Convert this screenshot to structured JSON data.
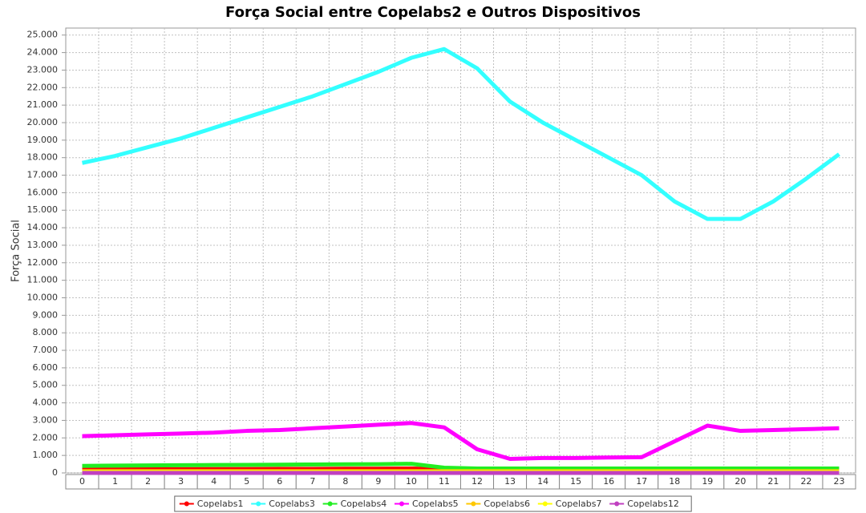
{
  "chart_data": {
    "type": "line",
    "title": "Força Social entre Copelabs2 e Outros Dispositivos",
    "y_label": "Força Social",
    "categories": [
      "0",
      "1",
      "2",
      "3",
      "4",
      "5",
      "6",
      "7",
      "8",
      "9",
      "10",
      "11",
      "12",
      "13",
      "14",
      "15",
      "16",
      "17",
      "18",
      "19",
      "20",
      "21",
      "22",
      "23"
    ],
    "series": [
      {
        "name": "Copelabs1",
        "color": "#ff0000",
        "values": [
          200,
          200,
          210,
          210,
          220,
          220,
          230,
          230,
          240,
          240,
          250,
          200,
          150,
          150,
          150,
          150,
          150,
          150,
          150,
          150,
          150,
          150,
          150,
          150
        ]
      },
      {
        "name": "Copelabs3",
        "color": "#33ffff",
        "values": [
          17700,
          18100,
          18600,
          19100,
          19700,
          20300,
          20900,
          21500,
          22200,
          22900,
          23700,
          24200,
          23100,
          21200,
          20000,
          19000,
          18000,
          17000,
          15500,
          14500,
          14500,
          15500,
          16800,
          18200
        ]
      },
      {
        "name": "Copelabs4",
        "color": "#22ee22",
        "values": [
          400,
          420,
          430,
          440,
          450,
          460,
          470,
          480,
          490,
          500,
          520,
          300,
          250,
          250,
          250,
          250,
          250,
          250,
          250,
          250,
          250,
          250,
          250,
          250
        ]
      },
      {
        "name": "Copelabs5",
        "color": "#ff00ff",
        "values": [
          2100,
          2150,
          2200,
          2250,
          2300,
          2400,
          2450,
          2550,
          2650,
          2750,
          2850,
          2600,
          1350,
          800,
          850,
          850,
          880,
          900,
          1800,
          2700,
          2400,
          2450,
          2500,
          2550
        ]
      },
      {
        "name": "Copelabs6",
        "color": "#ffc800",
        "values": [
          100,
          100,
          100,
          100,
          100,
          100,
          100,
          100,
          100,
          100,
          100,
          100,
          100,
          100,
          100,
          100,
          100,
          100,
          100,
          100,
          100,
          100,
          100,
          100
        ]
      },
      {
        "name": "Copelabs7",
        "color": "#ffff00",
        "values": [
          50,
          50,
          50,
          50,
          50,
          50,
          50,
          50,
          50,
          50,
          50,
          50,
          50,
          50,
          50,
          50,
          50,
          50,
          50,
          50,
          50,
          50,
          50,
          50
        ]
      },
      {
        "name": "Copelabs12",
        "color": "#c040c0",
        "values": [
          0,
          0,
          0,
          0,
          0,
          0,
          0,
          0,
          0,
          0,
          0,
          0,
          0,
          0,
          0,
          0,
          0,
          0,
          0,
          0,
          0,
          0,
          0,
          0
        ]
      }
    ],
    "ylim": [
      0,
      25400
    ],
    "yticks": [
      0,
      {
        "value": 1000,
        "label": "1.000"
      },
      {
        "value": 2000,
        "label": "2.000"
      },
      {
        "value": 3000,
        "label": "3.000"
      },
      {
        "value": 4000,
        "label": "4.000"
      },
      {
        "value": 5000,
        "label": "5.000"
      },
      {
        "value": 6000,
        "label": "6.000"
      },
      {
        "value": 7000,
        "label": "7.000"
      },
      {
        "value": 8000,
        "label": "8.000"
      },
      {
        "value": 9000,
        "label": "9.000"
      },
      {
        "value": 10000,
        "label": "10.000"
      },
      {
        "value": 11000,
        "label": "11.000"
      },
      {
        "value": 12000,
        "label": "12.000"
      },
      {
        "value": 13000,
        "label": "13.000"
      },
      {
        "value": 14000,
        "label": "14.000"
      },
      {
        "value": 15000,
        "label": "15.000"
      },
      {
        "value": 16000,
        "label": "16.000"
      },
      {
        "value": 17000,
        "label": "17.000"
      },
      {
        "value": 18000,
        "label": "18.000"
      },
      {
        "value": 19000,
        "label": "19.000"
      },
      {
        "value": 20000,
        "label": "20.000"
      },
      {
        "value": 21000,
        "label": "21.000"
      },
      {
        "value": 22000,
        "label": "22.000"
      },
      {
        "value": 23000,
        "label": "23.000"
      },
      {
        "value": 24000,
        "label": "24.000"
      },
      {
        "value": 25000,
        "label": "25.000"
      }
    ],
    "grid": true
  }
}
